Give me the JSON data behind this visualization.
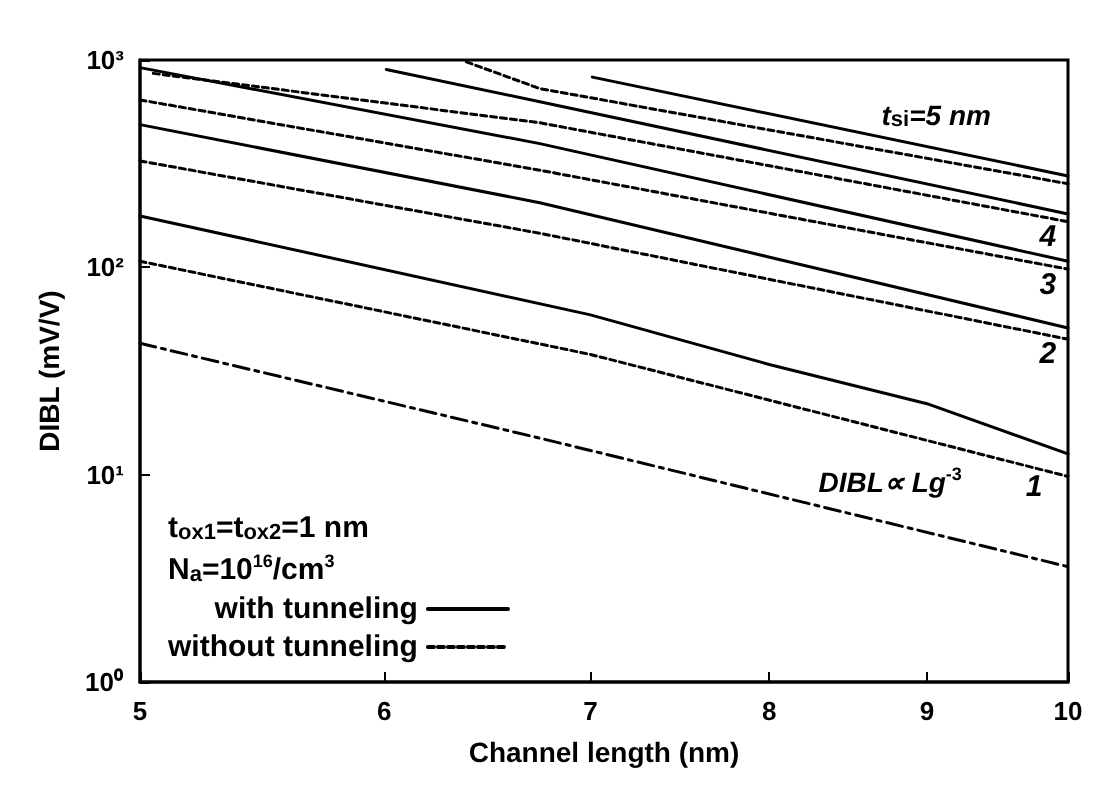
{
  "chart_data": {
    "type": "line",
    "xlabel": "Channel length (nm)",
    "ylabel": "DIBL (mV/V)",
    "log": "xy",
    "xlim": [
      5,
      10
    ],
    "xticks": [
      5,
      6,
      7,
      8,
      9,
      10
    ],
    "ylim": [
      1,
      1000
    ],
    "yticks": [
      {
        "value": 1,
        "label": "10⁰"
      },
      {
        "value": 10,
        "label": "10¹"
      },
      {
        "value": 100,
        "label": "10²"
      },
      {
        "value": 1000,
        "label": "10³"
      }
    ],
    "grid": false,
    "legend": "bottom left",
    "marker": "none",
    "series": [
      {
        "name": "with tunneling",
        "color": "#000000",
        "line_style": "solid",
        "x": [
          7.01,
          10
        ],
        "values": [
          827,
          276
        ]
      },
      {
        "name": "without tunneling",
        "color": "#000000",
        "line_style": "dotted",
        "x": [
          6.38,
          6.74,
          10
        ],
        "values": [
          979,
          728,
          253
        ]
      },
      {
        "color": "#000000",
        "line_style": "solid",
        "x": [
          6.01,
          6.74,
          10
        ],
        "values": [
          900,
          629,
          181
        ]
      },
      {
        "color": "#000000",
        "line_style": "dotted",
        "x": [
          5.05,
          6.74,
          10
        ],
        "values": [
          862,
          498,
          166
        ]
      },
      {
        "color": "#000000",
        "line_style": "solid",
        "x": [
          5,
          6.74,
          10
        ],
        "values": [
          919,
          395,
          107
        ]
      },
      {
        "color": "#000000",
        "line_style": "dotted",
        "x": [
          5,
          6.74,
          10
        ],
        "values": [
          642,
          294,
          98
        ]
      },
      {
        "color": "#000000",
        "line_style": "solid",
        "x": [
          5,
          6.74,
          10
        ],
        "values": [
          488,
          205,
          51
        ]
      },
      {
        "color": "#000000",
        "line_style": "dotted",
        "x": [
          5,
          6.74,
          10
        ],
        "values": [
          326,
          146,
          45
        ]
      },
      {
        "color": "#000000",
        "line_style": "solid",
        "x": [
          5,
          7,
          8,
          9,
          10
        ],
        "values": [
          177,
          59,
          34,
          22,
          12.6
        ]
      },
      {
        "color": "#000000",
        "line_style": "dotted",
        "x": [
          5,
          7,
          10
        ],
        "values": [
          107,
          38,
          9.8
        ]
      },
      {
        "color": "#000000",
        "line_style": "dashed",
        "x": [
          5,
          6.74,
          10
        ],
        "values": [
          43,
          15,
          3.6
        ]
      }
    ],
    "annotations": [
      "t$_{ox1}$=t$_{ox2}$=1 nm",
      "N$_{a}$=10$^{16}$/cm$^{3}$",
      {
        "text": "t$_{si}$=5 nm",
        "x": 8.7,
        "y": 425
      },
      {
        "text": "4",
        "x": 9.85,
        "y": 173
      },
      {
        "text": "3",
        "x": 9.85,
        "y": 102
      },
      {
        "text": "2",
        "x": 9.85,
        "y": 47
      },
      {
        "text": "1",
        "x": 9.75,
        "y": 10.8
      },
      {
        "text": "DIBL∝ Lg$^{-3}$",
        "x": 8.3,
        "y": 7.1
      }
    ]
  }
}
